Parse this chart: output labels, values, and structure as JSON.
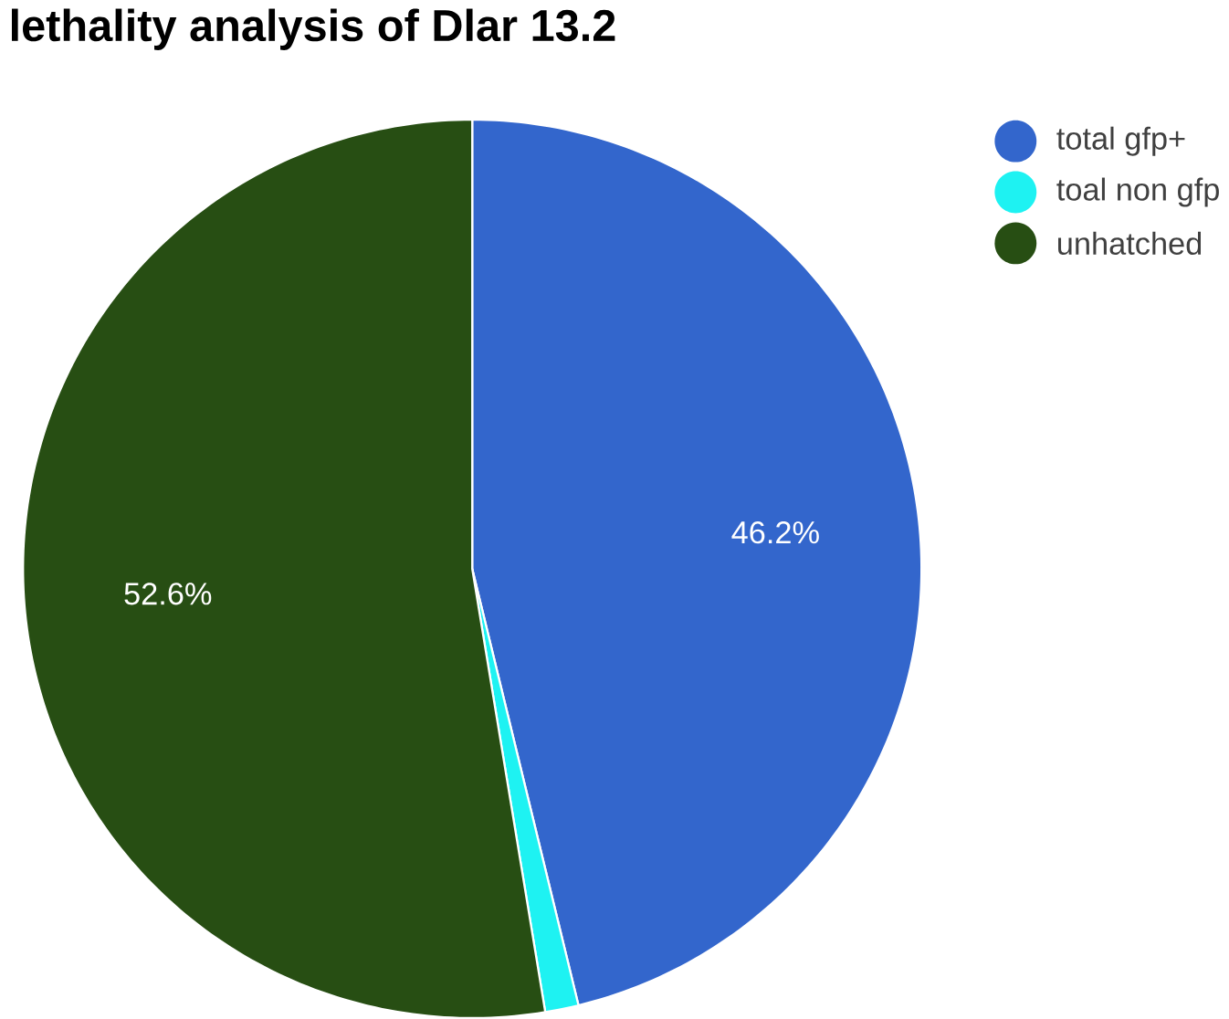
{
  "chart_data": {
    "type": "pie",
    "title": "lethality analysis of Dlar  13.2",
    "categories": [
      "total gfp+",
      "toal non gfp",
      "unhatched"
    ],
    "values": [
      46.2,
      1.2,
      52.6
    ],
    "colors": [
      "#3366cc",
      "#1ef2f2",
      "#274e13"
    ],
    "value_labels": [
      "46.2%",
      null,
      "52.6%"
    ],
    "legend": "top right"
  }
}
